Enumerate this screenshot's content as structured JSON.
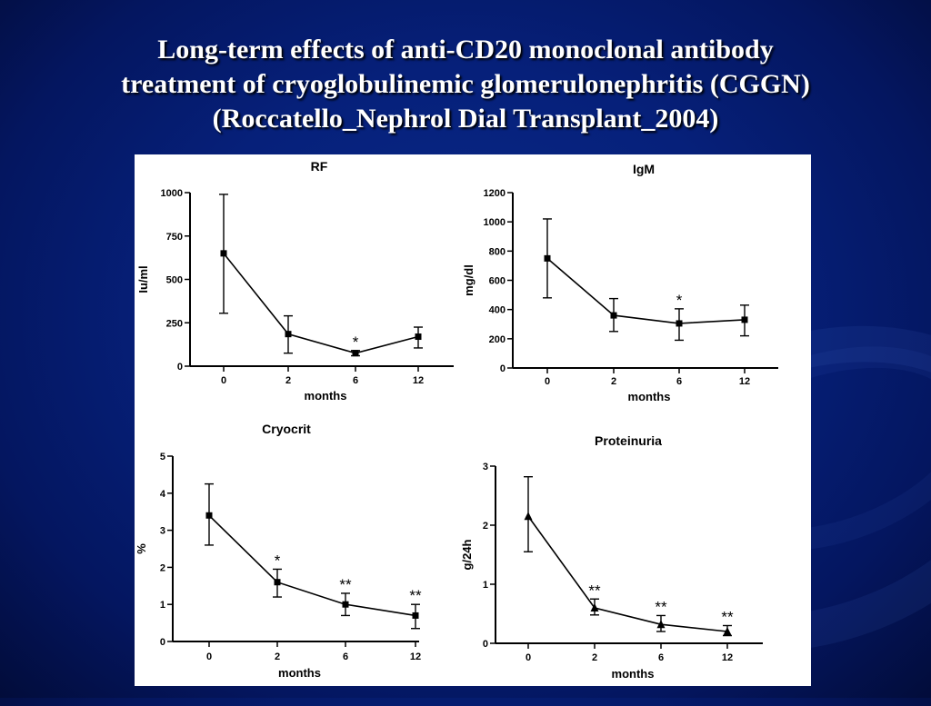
{
  "slide": {
    "title_lines": [
      "Long-term effects of anti-CD20 monoclonal antibody",
      "treatment of cryoglobulinemic glomerulonephritis (CGGN)",
      "(Roccatello_Nephrol Dial Transplant_2004)"
    ]
  },
  "chart_data": [
    {
      "type": "line",
      "title": "RF",
      "xlabel": "months",
      "ylabel": "Iu/ml",
      "categories": [
        "0",
        "2",
        "6",
        "12"
      ],
      "values": [
        650,
        185,
        75,
        170
      ],
      "error_low": [
        305,
        75,
        60,
        105
      ],
      "error_high": [
        990,
        290,
        90,
        225
      ],
      "annotations": [
        "",
        "",
        "*",
        ""
      ],
      "yticks": [
        0,
        250,
        500,
        750,
        1000
      ],
      "ytick_labels": [
        "0",
        "250",
        "500",
        "750",
        "1000"
      ],
      "ylim": [
        0,
        1000
      ],
      "marker": "square"
    },
    {
      "type": "line",
      "title": "IgM",
      "xlabel": "months",
      "ylabel": "mg/dl",
      "categories": [
        "0",
        "2",
        "6",
        "12"
      ],
      "values": [
        750,
        360,
        305,
        330
      ],
      "error_low": [
        480,
        250,
        190,
        220
      ],
      "error_high": [
        1020,
        475,
        405,
        430
      ],
      "annotations": [
        "",
        "",
        "*",
        ""
      ],
      "yticks": [
        0,
        200,
        400,
        600,
        800,
        1000,
        1200
      ],
      "ytick_labels": [
        "0",
        "200",
        "400",
        "600",
        "800",
        "1000",
        "1200"
      ],
      "ylim": [
        0,
        1200
      ],
      "marker": "square"
    },
    {
      "type": "line",
      "title": "Cryocrit",
      "xlabel": "months",
      "ylabel": "%",
      "categories": [
        "0",
        "2",
        "6",
        "12"
      ],
      "values": [
        3.4,
        1.6,
        1.0,
        0.7
      ],
      "error_low": [
        2.6,
        1.2,
        0.7,
        0.35
      ],
      "error_high": [
        4.25,
        1.95,
        1.3,
        1.0
      ],
      "annotations": [
        "",
        "*",
        "**",
        "**"
      ],
      "yticks": [
        0,
        1,
        2,
        3,
        4,
        5
      ],
      "ytick_labels": [
        "0",
        "1",
        "2",
        "3",
        "4",
        "5"
      ],
      "ylim": [
        0,
        5
      ],
      "marker": "square"
    },
    {
      "type": "line",
      "title": "Proteinuria",
      "xlabel": "months",
      "ylabel": "g/24h",
      "categories": [
        "0",
        "2",
        "6",
        "12"
      ],
      "values": [
        2.15,
        0.6,
        0.32,
        0.2
      ],
      "error_low": [
        1.55,
        0.48,
        0.2,
        0.13
      ],
      "error_high": [
        2.82,
        0.75,
        0.47,
        0.3
      ],
      "annotations": [
        "",
        "**",
        "**",
        "**"
      ],
      "yticks": [
        0,
        1,
        2,
        3
      ],
      "ytick_labels": [
        "0",
        "1",
        "2",
        "3"
      ],
      "ylim": [
        0,
        3
      ],
      "marker": "triangle"
    }
  ]
}
